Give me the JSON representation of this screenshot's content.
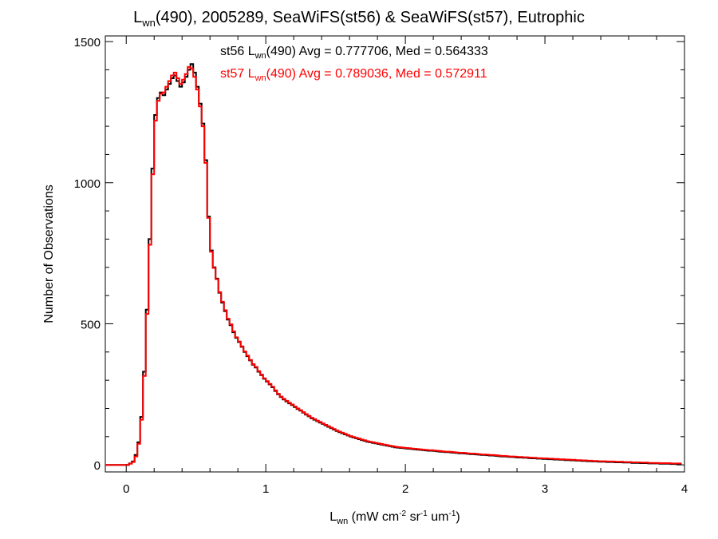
{
  "chart_data": {
    "type": "step-histogram",
    "title": {
      "main": "L",
      "sub": "wn",
      "rest": "(490), 2005289, SeaWiFS(st56) & SeaWiFS(st57), Eutrophic"
    },
    "xlabel": {
      "main": "L",
      "sub": "wn",
      "p1": " (mW cm",
      "s1": "-2",
      "p2": " sr",
      "s2": "-1",
      "p3": " um",
      "s3": "-1",
      "p4": ")"
    },
    "ylabel": "Number of Observations",
    "xlim": [
      -0.15,
      4.0
    ],
    "ylim": [
      -25,
      1520
    ],
    "x_ticks": [
      0,
      1,
      2,
      3,
      4
    ],
    "x_tick_labels": [
      "0",
      "1",
      "2",
      "3",
      "4"
    ],
    "y_ticks": [
      0,
      500,
      1000,
      1500
    ],
    "y_tick_labels": [
      "0",
      "500",
      "1000",
      "1500"
    ],
    "grid": false,
    "legend_position": "top-center",
    "bin_width": 0.02,
    "x_start": 0.0,
    "series": [
      {
        "name": "st56",
        "legend": {
          "pre": "st56 L",
          "sub": "wn",
          "post": "(490) Avg = 0.777706, Med = 0.564333"
        },
        "color": "#000000",
        "values": [
          0,
          5,
          12,
          35,
          80,
          170,
          330,
          550,
          800,
          1050,
          1240,
          1300,
          1320,
          1310,
          1330,
          1350,
          1370,
          1380,
          1360,
          1340,
          1355,
          1375,
          1400,
          1420,
          1390,
          1340,
          1280,
          1210,
          1080,
          880,
          760,
          700,
          660,
          610,
          575,
          545,
          515,
          495,
          470,
          450,
          435,
          418,
          400,
          385,
          370,
          355,
          345,
          330,
          318,
          305,
          295,
          285,
          275,
          262,
          250,
          240,
          232,
          225,
          218,
          212,
          205,
          198,
          192,
          185,
          178,
          172,
          165,
          160,
          155,
          150,
          145,
          140,
          135,
          130,
          125,
          120,
          116,
          112,
          108,
          104,
          100,
          97,
          94,
          91,
          88,
          85,
          82,
          80,
          78,
          76,
          74,
          72,
          70,
          68,
          66,
          64,
          62,
          61,
          60,
          59,
          58,
          57,
          56,
          55,
          54,
          53,
          52,
          51,
          50,
          50,
          49,
          48,
          47,
          46,
          45,
          45,
          44,
          43,
          42,
          41,
          41,
          40,
          39,
          38,
          38,
          37,
          36,
          35,
          35,
          34,
          33,
          33,
          32,
          31,
          30,
          30,
          29,
          28,
          28,
          27,
          26,
          26,
          25,
          25,
          24,
          23,
          23,
          22,
          22,
          21,
          21,
          20,
          20,
          19,
          19,
          18,
          18,
          17,
          17,
          16,
          16,
          15,
          15,
          14,
          14,
          13,
          13,
          12,
          12,
          11,
          11,
          11,
          10,
          10,
          10,
          9,
          9,
          9,
          8,
          8,
          8,
          7,
          7,
          7,
          6,
          6,
          6,
          5,
          5,
          5,
          5,
          4,
          4,
          4,
          4,
          3,
          3,
          3,
          3
        ]
      },
      {
        "name": "st57",
        "legend": {
          "pre": "st57 L",
          "sub": "wn",
          "post": "(490) Avg = 0.789036, Med = 0.572911"
        },
        "color": "#ff0000",
        "values": [
          0,
          4,
          10,
          30,
          75,
          160,
          315,
          535,
          780,
          1030,
          1220,
          1290,
          1315,
          1320,
          1340,
          1360,
          1380,
          1390,
          1370,
          1350,
          1365,
          1385,
          1410,
          1405,
          1375,
          1330,
          1270,
          1200,
          1070,
          875,
          755,
          698,
          658,
          612,
          578,
          548,
          518,
          498,
          473,
          452,
          437,
          420,
          402,
          387,
          372,
          357,
          347,
          332,
          320,
          307,
          297,
          287,
          277,
          264,
          252,
          242,
          234,
          227,
          220,
          214,
          207,
          200,
          194,
          187,
          180,
          174,
          167,
          162,
          157,
          152,
          147,
          142,
          137,
          132,
          127,
          122,
          118,
          114,
          110,
          106,
          102,
          99,
          96,
          93,
          90,
          87,
          84,
          82,
          80,
          78,
          76,
          74,
          72,
          70,
          68,
          66,
          64,
          63,
          62,
          61,
          60,
          59,
          58,
          57,
          56,
          55,
          54,
          53,
          52,
          52,
          51,
          50,
          49,
          48,
          47,
          47,
          46,
          45,
          44,
          43,
          43,
          42,
          41,
          40,
          40,
          39,
          38,
          37,
          37,
          36,
          35,
          35,
          34,
          33,
          32,
          32,
          31,
          30,
          30,
          29,
          28,
          28,
          27,
          27,
          26,
          25,
          25,
          24,
          24,
          23,
          23,
          22,
          22,
          21,
          21,
          20,
          20,
          19,
          19,
          18,
          18,
          17,
          17,
          16,
          16,
          15,
          15,
          14,
          14,
          13,
          13,
          13,
          12,
          12,
          12,
          11,
          11,
          11,
          10,
          10,
          10,
          9,
          9,
          9,
          8,
          8,
          8,
          7,
          7,
          7,
          7,
          6,
          6,
          6,
          6,
          5,
          5,
          5,
          5
        ]
      }
    ]
  }
}
